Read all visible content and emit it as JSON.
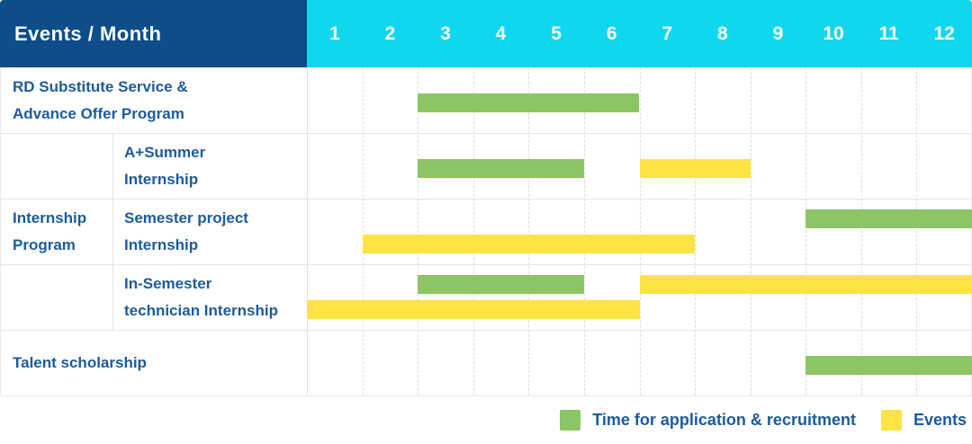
{
  "header": {
    "title": "Events / Month"
  },
  "chart_data": {
    "type": "gantt-table",
    "title": "Events / Month",
    "months": [
      1,
      2,
      3,
      4,
      5,
      6,
      7,
      8,
      9,
      10,
      11,
      12
    ],
    "group_label": "Internship Program",
    "group_label_lines": [
      "Internship",
      "Program"
    ],
    "rows": [
      {
        "label": "RD Substitute Service & Advance Offer Program",
        "label_lines": [
          "RD Substitute Service &",
          "Advance Offer Program"
        ],
        "group": null,
        "bars": [
          {
            "series": "application",
            "start_month": 3,
            "end_month": 6,
            "lane": "center"
          }
        ]
      },
      {
        "label": "A+Summer Internship",
        "label_lines": [
          "A+Summer",
          "Internship"
        ],
        "group": "Internship Program",
        "bars": [
          {
            "series": "application",
            "start_month": 3,
            "end_month": 5,
            "lane": "center"
          },
          {
            "series": "events",
            "start_month": 7,
            "end_month": 8,
            "lane": "center"
          }
        ]
      },
      {
        "label": "Semester project Internship",
        "label_lines": [
          "Semester project",
          "Internship"
        ],
        "group": "Internship Program",
        "bars": [
          {
            "series": "application",
            "start_month": 10,
            "end_month": 12,
            "lane": "top"
          },
          {
            "series": "events",
            "start_month": 2,
            "end_month": 7,
            "lane": "bottom"
          }
        ]
      },
      {
        "label": "In-Semester technician Internship",
        "label_lines": [
          "In-Semester",
          "technician Internship"
        ],
        "group": "Internship Program",
        "bars": [
          {
            "series": "application",
            "start_month": 3,
            "end_month": 5,
            "lane": "top"
          },
          {
            "series": "events",
            "start_month": 7,
            "end_month": 12,
            "lane": "top"
          },
          {
            "series": "events",
            "start_month": 1,
            "end_month": 6,
            "lane": "bottom"
          }
        ]
      },
      {
        "label": "Talent scholarship",
        "label_lines": [
          "Talent scholarship"
        ],
        "group": null,
        "bars": [
          {
            "series": "application",
            "start_month": 10,
            "end_month": 12,
            "lane": "center"
          }
        ]
      }
    ],
    "legend": [
      {
        "series": "application",
        "label": "Time for application & recruitment"
      },
      {
        "series": "events",
        "label": "Events"
      }
    ],
    "series_colors": {
      "application": "#8cc563",
      "events": "#fde343"
    },
    "colors": {
      "header_bg": "#0c4d8a",
      "months_bg": "#10d7ee",
      "text": "#1c5b9b",
      "gridline": "#dedede"
    },
    "layout": {
      "grid_on": true,
      "legend_position": "bottom-right"
    }
  }
}
